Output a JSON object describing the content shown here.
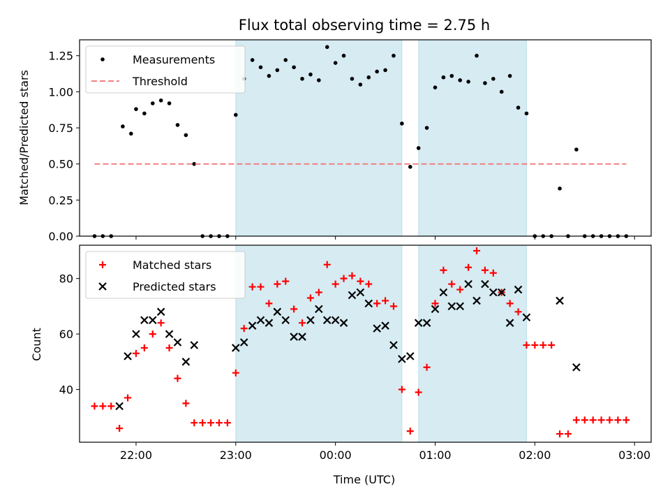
{
  "chart_data": [
    {
      "type": "scatter",
      "title": "Flux total observing time = 2.75 h",
      "xlabel": "",
      "ylabel": "Matched/Predicted stars",
      "ylim": [
        0,
        1.36
      ],
      "xlim": [
        "21:26",
        "03:10"
      ],
      "yticks": [
        {
          "v": 0.0,
          "label": "0.00"
        },
        {
          "v": 0.25,
          "label": "0.25"
        },
        {
          "v": 0.5,
          "label": "0.50"
        },
        {
          "v": 0.75,
          "label": "0.75"
        },
        {
          "v": 1.0,
          "label": "1.00"
        },
        {
          "v": 1.25,
          "label": "1.25"
        }
      ],
      "legend": {
        "placement": "top-left",
        "entries": [
          "Measurements",
          "Threshold"
        ]
      },
      "series": [
        {
          "name": "Measurements",
          "color": "#000000",
          "marker": "dot",
          "points": [
            [
              "21:35",
              0
            ],
            [
              "21:40",
              0
            ],
            [
              "21:45",
              0
            ],
            [
              "21:52",
              0.76
            ],
            [
              "21:57",
              0.71
            ],
            [
              "22:00",
              0.88
            ],
            [
              "22:05",
              0.85
            ],
            [
              "22:10",
              0.92
            ],
            [
              "22:15",
              0.94
            ],
            [
              "22:20",
              0.92
            ],
            [
              "22:25",
              0.77
            ],
            [
              "22:30",
              0.7
            ],
            [
              "22:35",
              0.5
            ],
            [
              "22:40",
              0
            ],
            [
              "22:45",
              0
            ],
            [
              "22:50",
              0
            ],
            [
              "22:55",
              0
            ],
            [
              "23:00",
              0.84
            ],
            [
              "23:05",
              1.09
            ],
            [
              "23:10",
              1.22
            ],
            [
              "23:15",
              1.17
            ],
            [
              "23:20",
              1.11
            ],
            [
              "23:25",
              1.15
            ],
            [
              "23:30",
              1.22
            ],
            [
              "23:35",
              1.17
            ],
            [
              "23:40",
              1.09
            ],
            [
              "23:45",
              1.12
            ],
            [
              "23:50",
              1.08
            ],
            [
              "23:55",
              1.31
            ],
            [
              "00:00",
              1.2
            ],
            [
              "00:05",
              1.25
            ],
            [
              "00:10",
              1.09
            ],
            [
              "00:15",
              1.05
            ],
            [
              "00:20",
              1.1
            ],
            [
              "00:25",
              1.14
            ],
            [
              "00:30",
              1.15
            ],
            [
              "00:35",
              1.25
            ],
            [
              "00:40",
              0.78
            ],
            [
              "00:45",
              0.48
            ],
            [
              "00:50",
              0.61
            ],
            [
              "00:55",
              0.75
            ],
            [
              "01:00",
              1.03
            ],
            [
              "01:05",
              1.1
            ],
            [
              "01:10",
              1.11
            ],
            [
              "01:15",
              1.08
            ],
            [
              "01:20",
              1.07
            ],
            [
              "01:25",
              1.25
            ],
            [
              "01:30",
              1.06
            ],
            [
              "01:35",
              1.09
            ],
            [
              "01:40",
              1.0
            ],
            [
              "01:45",
              1.11
            ],
            [
              "01:50",
              0.89
            ],
            [
              "01:55",
              0.85
            ],
            [
              "02:00",
              0
            ],
            [
              "02:05",
              0
            ],
            [
              "02:10",
              0
            ],
            [
              "02:15",
              0.33
            ],
            [
              "02:20",
              0
            ],
            [
              "02:25",
              0.6
            ],
            [
              "02:30",
              0
            ],
            [
              "02:35",
              0
            ],
            [
              "02:40",
              0
            ],
            [
              "02:45",
              0
            ],
            [
              "02:50",
              0
            ],
            [
              "02:55",
              0
            ]
          ]
        },
        {
          "name": "Threshold",
          "color": "#f08080",
          "style": "dashed",
          "points": [
            [
              "21:35",
              0.5
            ],
            [
              "02:55",
              0.5
            ]
          ]
        }
      ],
      "shaded_intervals": [
        [
          "23:00",
          "00:40"
        ],
        [
          "00:50",
          "01:55"
        ]
      ],
      "shade_color": "#add8e6"
    },
    {
      "type": "scatter",
      "title": "",
      "xlabel": "Time (UTC)",
      "ylabel": "Count",
      "ylim": [
        21,
        92
      ],
      "xlim": [
        "21:26",
        "03:10"
      ],
      "yticks": [
        {
          "v": 40,
          "label": "40"
        },
        {
          "v": 60,
          "label": "60"
        },
        {
          "v": 80,
          "label": "80"
        }
      ],
      "xticks": [
        {
          "t": "22:00",
          "label": "22:00"
        },
        {
          "t": "23:00",
          "label": "23:00"
        },
        {
          "t": "00:00",
          "label": "00:00"
        },
        {
          "t": "01:00",
          "label": "01:00"
        },
        {
          "t": "02:00",
          "label": "02:00"
        },
        {
          "t": "03:00",
          "label": "03:00"
        }
      ],
      "legend": {
        "placement": "top-left",
        "entries": [
          "Matched stars",
          "Predicted stars"
        ]
      },
      "series": [
        {
          "name": "Matched stars",
          "color": "#ff0000",
          "marker": "plus",
          "points": [
            [
              "21:35",
              34
            ],
            [
              "21:40",
              34
            ],
            [
              "21:45",
              34
            ],
            [
              "21:50",
              26
            ],
            [
              "21:55",
              37
            ],
            [
              "22:00",
              53
            ],
            [
              "22:05",
              55
            ],
            [
              "22:10",
              60
            ],
            [
              "22:15",
              64
            ],
            [
              "22:20",
              55
            ],
            [
              "22:25",
              44
            ],
            [
              "22:30",
              35
            ],
            [
              "22:35",
              28
            ],
            [
              "22:40",
              28
            ],
            [
              "22:45",
              28
            ],
            [
              "22:50",
              28
            ],
            [
              "22:55",
              28
            ],
            [
              "23:00",
              46
            ],
            [
              "23:05",
              62
            ],
            [
              "23:10",
              77
            ],
            [
              "23:15",
              77
            ],
            [
              "23:20",
              71
            ],
            [
              "23:25",
              78
            ],
            [
              "23:30",
              79
            ],
            [
              "23:35",
              69
            ],
            [
              "23:40",
              64
            ],
            [
              "23:45",
              73
            ],
            [
              "23:50",
              75
            ],
            [
              "23:55",
              85
            ],
            [
              "00:00",
              78
            ],
            [
              "00:05",
              80
            ],
            [
              "00:10",
              81
            ],
            [
              "00:15",
              79
            ],
            [
              "00:20",
              78
            ],
            [
              "00:25",
              71
            ],
            [
              "00:30",
              72
            ],
            [
              "00:35",
              70
            ],
            [
              "00:40",
              40
            ],
            [
              "00:45",
              25
            ],
            [
              "00:50",
              39
            ],
            [
              "00:55",
              48
            ],
            [
              "01:00",
              71
            ],
            [
              "01:05",
              83
            ],
            [
              "01:10",
              78
            ],
            [
              "01:15",
              76
            ],
            [
              "01:20",
              84
            ],
            [
              "01:25",
              90
            ],
            [
              "01:30",
              83
            ],
            [
              "01:35",
              82
            ],
            [
              "01:40",
              75
            ],
            [
              "01:45",
              71
            ],
            [
              "01:50",
              68
            ],
            [
              "01:55",
              56
            ],
            [
              "02:00",
              56
            ],
            [
              "02:05",
              56
            ],
            [
              "02:10",
              56
            ],
            [
              "02:15",
              24
            ],
            [
              "02:20",
              24
            ],
            [
              "02:25",
              29
            ],
            [
              "02:30",
              29
            ],
            [
              "02:35",
              29
            ],
            [
              "02:40",
              29
            ],
            [
              "02:45",
              29
            ],
            [
              "02:50",
              29
            ],
            [
              "02:55",
              29
            ]
          ]
        },
        {
          "name": "Predicted stars",
          "color": "#000000",
          "marker": "x",
          "points": [
            [
              "21:50",
              34
            ],
            [
              "21:55",
              52
            ],
            [
              "22:00",
              60
            ],
            [
              "22:05",
              65
            ],
            [
              "22:10",
              65
            ],
            [
              "22:15",
              68
            ],
            [
              "22:20",
              60
            ],
            [
              "22:25",
              57
            ],
            [
              "22:30",
              50
            ],
            [
              "22:35",
              56
            ],
            [
              "23:00",
              55
            ],
            [
              "23:05",
              57
            ],
            [
              "23:10",
              63
            ],
            [
              "23:15",
              65
            ],
            [
              "23:20",
              64
            ],
            [
              "23:25",
              68
            ],
            [
              "23:30",
              65
            ],
            [
              "23:35",
              59
            ],
            [
              "23:40",
              59
            ],
            [
              "23:45",
              65
            ],
            [
              "23:50",
              69
            ],
            [
              "23:55",
              65
            ],
            [
              "00:00",
              65
            ],
            [
              "00:05",
              64
            ],
            [
              "00:10",
              74
            ],
            [
              "00:15",
              75
            ],
            [
              "00:20",
              71
            ],
            [
              "00:25",
              62
            ],
            [
              "00:30",
              63
            ],
            [
              "00:35",
              56
            ],
            [
              "00:40",
              51
            ],
            [
              "00:45",
              52
            ],
            [
              "00:50",
              64
            ],
            [
              "00:55",
              64
            ],
            [
              "01:00",
              69
            ],
            [
              "01:05",
              75
            ],
            [
              "01:10",
              70
            ],
            [
              "01:15",
              70
            ],
            [
              "01:20",
              78
            ],
            [
              "01:25",
              72
            ],
            [
              "01:30",
              78
            ],
            [
              "01:35",
              75
            ],
            [
              "01:40",
              75
            ],
            [
              "01:45",
              64
            ],
            [
              "01:50",
              76
            ],
            [
              "01:55",
              66
            ],
            [
              "02:15",
              72
            ],
            [
              "02:25",
              48
            ]
          ]
        }
      ],
      "shaded_intervals": [
        [
          "23:00",
          "00:40"
        ],
        [
          "00:50",
          "01:55"
        ]
      ],
      "shade_color": "#add8e6"
    }
  ]
}
